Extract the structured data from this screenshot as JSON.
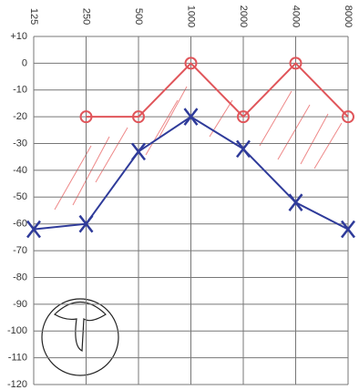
{
  "chart_data": {
    "type": "line",
    "categories": [
      "125",
      "250",
      "500",
      "1000",
      "2000",
      "4000",
      "8000"
    ],
    "series": [
      {
        "color": "#e0555a",
        "marker": "circle",
        "values": [
          null,
          -20,
          -20,
          0,
          -20,
          0,
          -20
        ]
      },
      {
        "color": "#2f3b9a",
        "marker": "x",
        "values": [
          -62,
          -60,
          -33,
          -20,
          -32,
          -52,
          -62
        ]
      }
    ],
    "ylim": [
      -120,
      10
    ],
    "yticks": [
      {
        "value": 10,
        "label": "+10"
      },
      0,
      -10,
      -20,
      -30,
      -40,
      -50,
      -60,
      -70,
      -80,
      -90,
      -100,
      -110,
      -120
    ],
    "grid": true
  }
}
